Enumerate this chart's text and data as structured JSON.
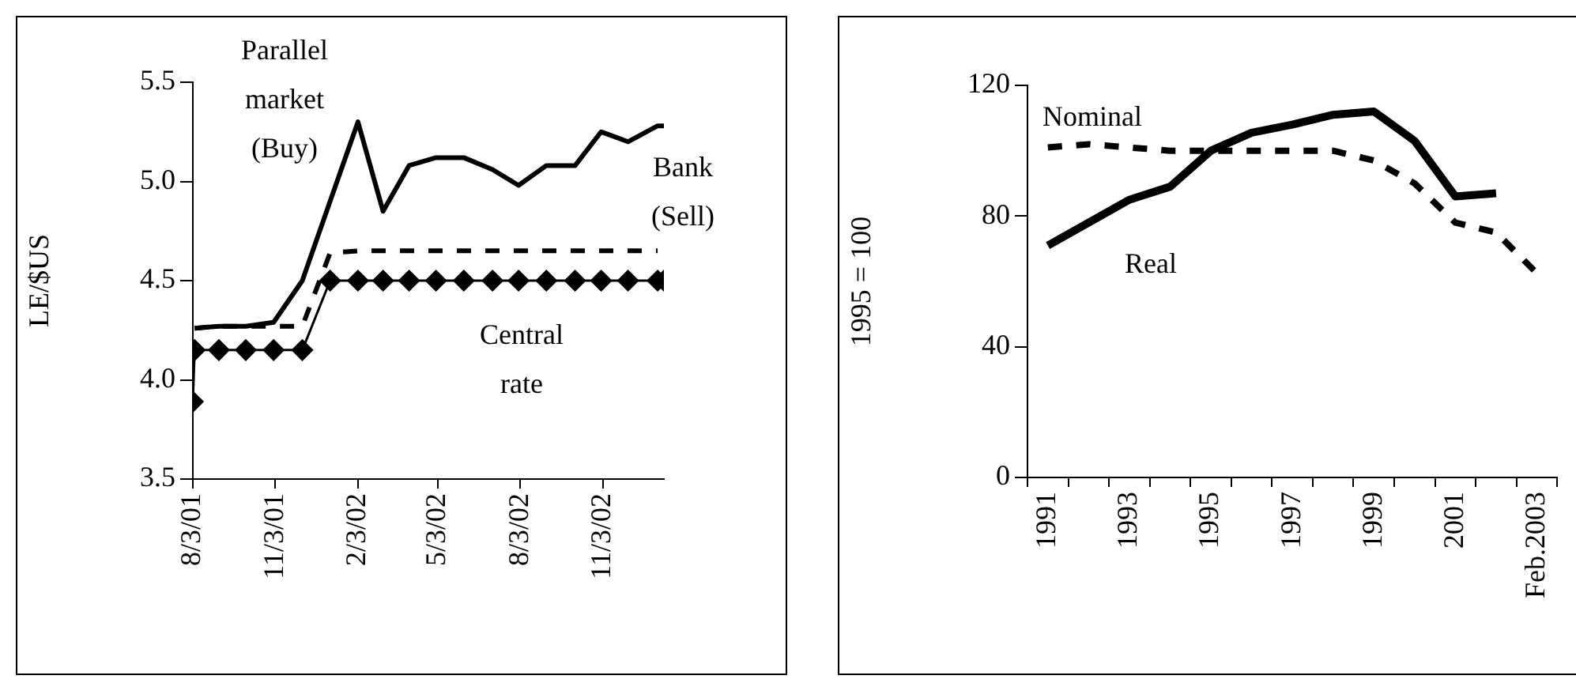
{
  "chart_data": [
    {
      "type": "line",
      "ylabel": "LE/$US",
      "xlim": [
        "2001-08-03",
        "2003-01-10"
      ],
      "xticks": [
        {
          "value": "2001-08-03",
          "label": "8/3/01"
        },
        {
          "value": "2001-11-03",
          "label": "11/3/01"
        },
        {
          "value": "2002-02-03",
          "label": "2/3/02"
        },
        {
          "value": "2002-05-03",
          "label": "5/3/02"
        },
        {
          "value": "2002-08-03",
          "label": "8/3/02"
        },
        {
          "value": "2002-11-03",
          "label": "11/3/02"
        }
      ],
      "ylim": [
        3.5,
        5.5
      ],
      "yticks": [
        3.5,
        {
          "value": 4,
          "label": "4.0"
        },
        4.5,
        {
          "value": 5,
          "label": "5.0"
        },
        5.5
      ],
      "grid": false,
      "legend": false,
      "series": [
        {
          "name": "Parallel market (Buy)",
          "color": "#000000",
          "line_style": "solid",
          "marker": "none",
          "x": [
            "2001-08-05",
            "2001-09-01",
            "2001-10-01",
            "2001-11-01",
            "2001-12-03",
            "2002-01-03",
            "2002-02-03",
            "2002-03-03",
            "2002-04-01",
            "2002-05-01",
            "2002-06-01",
            "2002-07-03",
            "2002-08-01",
            "2002-09-01",
            "2002-10-03",
            "2002-11-01",
            "2002-12-01",
            "2003-01-03",
            "2003-01-10"
          ],
          "values": [
            4.26,
            4.27,
            4.27,
            4.29,
            4.5,
            4.9,
            5.3,
            4.85,
            5.08,
            5.12,
            5.12,
            5.06,
            4.98,
            5.08,
            5.08,
            5.25,
            5.2,
            5.28,
            5.28
          ]
        },
        {
          "name": "Bank (Sell)",
          "color": "#000000",
          "line_style": "dashed",
          "marker": "none",
          "x": [
            "2001-08-05",
            "2001-09-01",
            "2001-10-01",
            "2001-11-01",
            "2001-12-03",
            "2002-01-03",
            "2002-02-03",
            "2002-03-03",
            "2002-04-01",
            "2002-05-01",
            "2002-06-01",
            "2002-07-03",
            "2002-08-01",
            "2002-09-01",
            "2002-10-03",
            "2002-11-01",
            "2002-12-01",
            "2003-01-03"
          ],
          "values": [
            4.26,
            4.27,
            4.27,
            4.27,
            4.27,
            4.64,
            4.65,
            4.65,
            4.65,
            4.65,
            4.65,
            4.65,
            4.65,
            4.65,
            4.65,
            4.65,
            4.65,
            4.65
          ]
        },
        {
          "name": "Central rate",
          "color": "#000000",
          "line_style": "solid",
          "marker": "diamond",
          "x": [
            "2001-08-03",
            "2001-08-05",
            "2001-09-01",
            "2001-10-01",
            "2001-11-01",
            "2001-12-03",
            "2002-01-03",
            "2002-02-03",
            "2002-03-03",
            "2002-04-01",
            "2002-05-01",
            "2002-06-01",
            "2002-07-03",
            "2002-08-01",
            "2002-09-01",
            "2002-10-03",
            "2002-11-01",
            "2002-12-01",
            "2003-01-03",
            "2003-01-10"
          ],
          "values": [
            3.89,
            4.15,
            4.15,
            4.15,
            4.15,
            4.15,
            4.5,
            4.5,
            4.5,
            4.5,
            4.5,
            4.5,
            4.5,
            4.5,
            4.5,
            4.5,
            4.5,
            4.5,
            4.5,
            4.5
          ]
        }
      ]
    },
    {
      "type": "line",
      "ylabel": "1995 = 100",
      "categories": [
        "1991",
        null,
        "1993",
        null,
        "1995",
        null,
        "1997",
        null,
        "1999",
        null,
        "2001",
        null,
        "Feb.2003"
      ],
      "ylim": [
        0,
        120
      ],
      "yticks": [
        0,
        40,
        80,
        120
      ],
      "grid": false,
      "legend": false,
      "series": [
        {
          "name": "Real",
          "color": "#000000",
          "line_style": "solid",
          "marker": "none",
          "values": [
            71,
            78,
            85,
            89,
            100,
            105.5,
            108,
            111,
            112,
            103,
            86,
            87,
            null
          ]
        },
        {
          "name": "Nominal",
          "color": "#000000",
          "line_style": "dashed",
          "marker": "none",
          "values": [
            101,
            102,
            101,
            100,
            100,
            100,
            100,
            100,
            97,
            90,
            78,
            75,
            62.5
          ]
        }
      ]
    }
  ]
}
